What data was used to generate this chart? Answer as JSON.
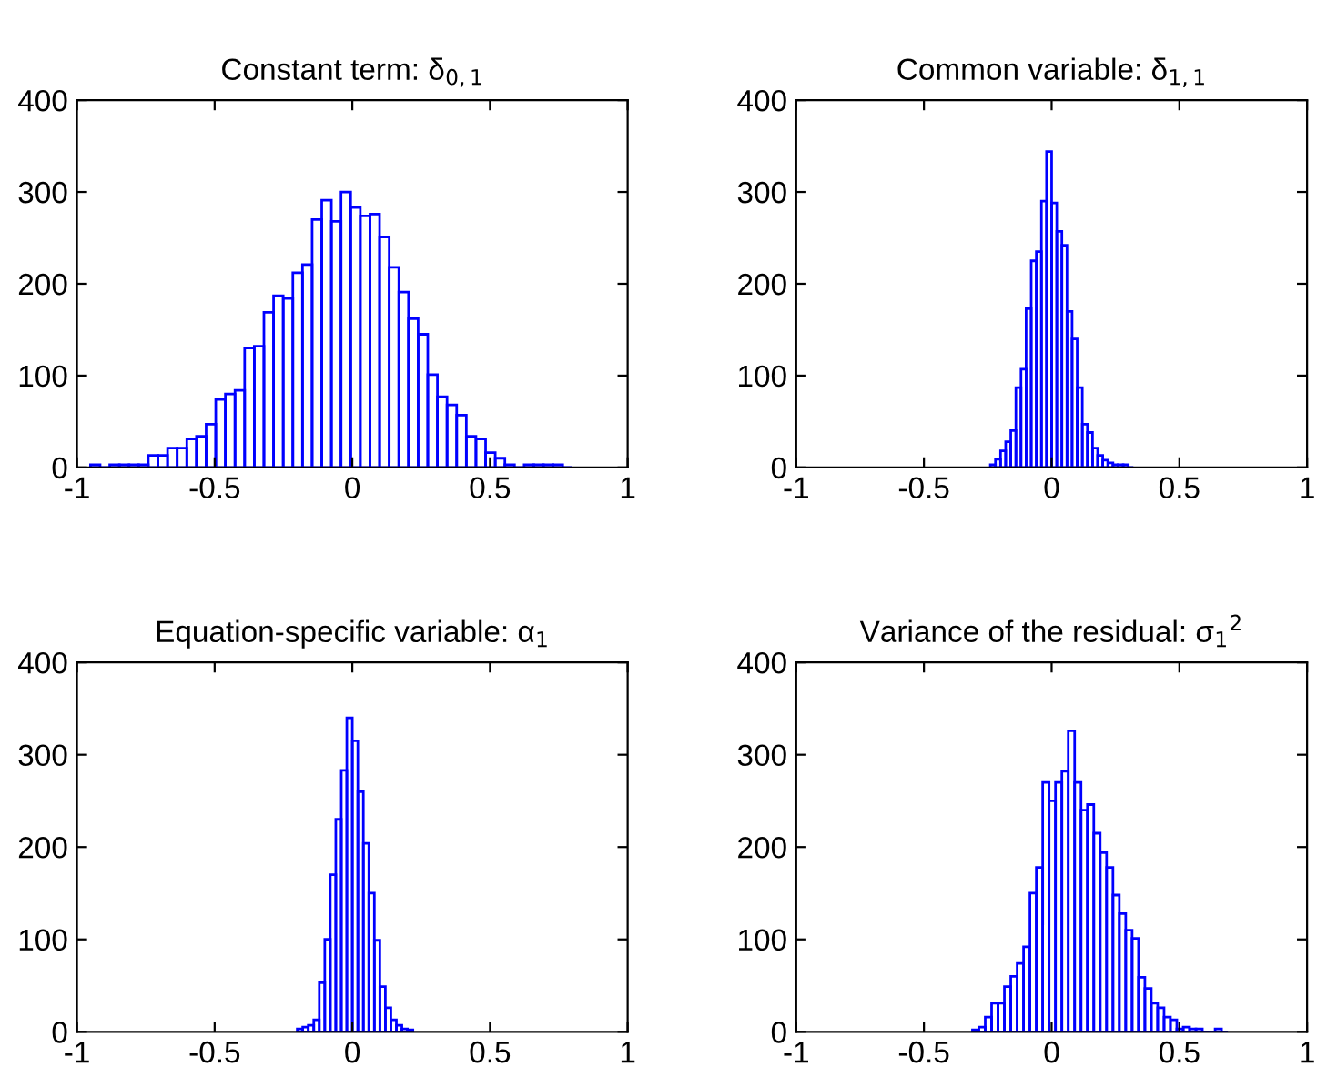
{
  "chart_data": [
    {
      "type": "histogram",
      "title": "Constant term: δ$_{0,1}$",
      "color": "#0000ff",
      "bins": [
        -0.951,
        -0.916,
        -0.881,
        -0.846,
        -0.811,
        -0.776,
        -0.741,
        -0.706,
        -0.671,
        -0.636,
        -0.601,
        -0.566,
        -0.531,
        -0.496,
        -0.461,
        -0.426,
        -0.391,
        -0.356,
        -0.321,
        -0.286,
        -0.251,
        -0.216,
        -0.181,
        -0.146,
        -0.111,
        -0.076,
        -0.041,
        -0.006,
        0.029,
        0.064,
        0.099,
        0.134,
        0.169,
        0.204,
        0.239,
        0.274,
        0.309,
        0.344,
        0.379,
        0.414,
        0.449,
        0.484,
        0.519,
        0.554,
        0.589,
        0.624,
        0.659,
        0.694,
        0.729,
        0.764,
        0.799
      ],
      "values": [
        3,
        0,
        3,
        3,
        3,
        3,
        13,
        13,
        21,
        21,
        31,
        34,
        47,
        74,
        80,
        84,
        130,
        132,
        169,
        187,
        184,
        212,
        221,
        270,
        291,
        268,
        300,
        283,
        274,
        276,
        251,
        218,
        191,
        162,
        145,
        101,
        77,
        68,
        57,
        34,
        31,
        16,
        10,
        3,
        0,
        3,
        3,
        3,
        3,
        0
      ],
      "xlim": [
        -1,
        1
      ],
      "ylim": [
        0,
        400
      ],
      "xticks": [
        -1,
        -0.5,
        0,
        0.5,
        1
      ],
      "yticks": [
        0,
        100,
        200,
        300,
        400
      ]
    },
    {
      "type": "histogram",
      "title": "Common variable: δ$_{1,1}$",
      "color": "#0000ff",
      "bins": [
        -0.24,
        -0.22,
        -0.2,
        -0.18,
        -0.16,
        -0.14,
        -0.12,
        -0.1,
        -0.08,
        -0.06,
        -0.04,
        -0.02,
        0,
        0.02,
        0.04,
        0.06,
        0.08,
        0.1,
        0.12,
        0.14,
        0.16,
        0.18,
        0.2,
        0.22,
        0.24,
        0.26,
        0.28,
        0.3,
        0.32
      ],
      "values": [
        3,
        9,
        18,
        28,
        40,
        87,
        107,
        173,
        225,
        235,
        290,
        344,
        288,
        257,
        242,
        170,
        140,
        87,
        47,
        38,
        21,
        13,
        8,
        5,
        3,
        3,
        3,
        0
      ],
      "xlim": [
        -1,
        1
      ],
      "ylim": [
        0,
        400
      ],
      "xticks": [
        -1,
        -0.5,
        0,
        0.5,
        1
      ],
      "yticks": [
        0,
        100,
        200,
        300,
        400
      ]
    },
    {
      "type": "histogram",
      "title": "Equation-specific variable: α$_{1}$",
      "color": "#0000ff",
      "bins": [
        -0.2,
        -0.18,
        -0.16,
        -0.14,
        -0.12,
        -0.1,
        -0.08,
        -0.06,
        -0.04,
        -0.02,
        0,
        0.02,
        0.04,
        0.06,
        0.08,
        0.1,
        0.12,
        0.14,
        0.16,
        0.18,
        0.2,
        0.22
      ],
      "values": [
        3,
        5,
        7,
        13,
        53,
        100,
        170,
        230,
        283,
        340,
        315,
        260,
        204,
        150,
        99,
        49,
        26,
        13,
        7,
        3,
        2
      ],
      "xlim": [
        -1,
        1
      ],
      "ylim": [
        0,
        400
      ],
      "xticks": [
        -1,
        -0.5,
        0,
        0.5,
        1
      ],
      "yticks": [
        0,
        100,
        200,
        300,
        400
      ]
    },
    {
      "type": "histogram",
      "title": "Variance of the residual: σ$_{1}$$^{2}$",
      "color": "#0000ff",
      "bins": [
        -0.31,
        -0.285,
        -0.26,
        -0.235,
        -0.21,
        -0.185,
        -0.16,
        -0.135,
        -0.11,
        -0.085,
        -0.06,
        -0.035,
        -0.01,
        0.015,
        0.04,
        0.065,
        0.09,
        0.115,
        0.14,
        0.165,
        0.19,
        0.215,
        0.24,
        0.265,
        0.29,
        0.315,
        0.34,
        0.365,
        0.39,
        0.415,
        0.44,
        0.465,
        0.49,
        0.515,
        0.54,
        0.565,
        0.59,
        0.615,
        0.64,
        0.665,
        0.69
      ],
      "values": [
        2,
        5,
        16,
        31,
        31,
        49,
        60,
        74,
        92,
        150,
        178,
        270,
        250,
        270,
        282,
        326,
        270,
        240,
        246,
        215,
        194,
        178,
        148,
        128,
        110,
        101,
        59,
        47,
        31,
        26,
        16,
        13,
        3,
        5,
        3,
        3,
        0,
        0,
        3,
        0
      ],
      "xlim": [
        -1,
        1
      ],
      "ylim": [
        0,
        400
      ],
      "xticks": [
        -1,
        -0.5,
        0,
        0.5,
        1
      ],
      "yticks": [
        0,
        100,
        200,
        300,
        400
      ]
    }
  ]
}
